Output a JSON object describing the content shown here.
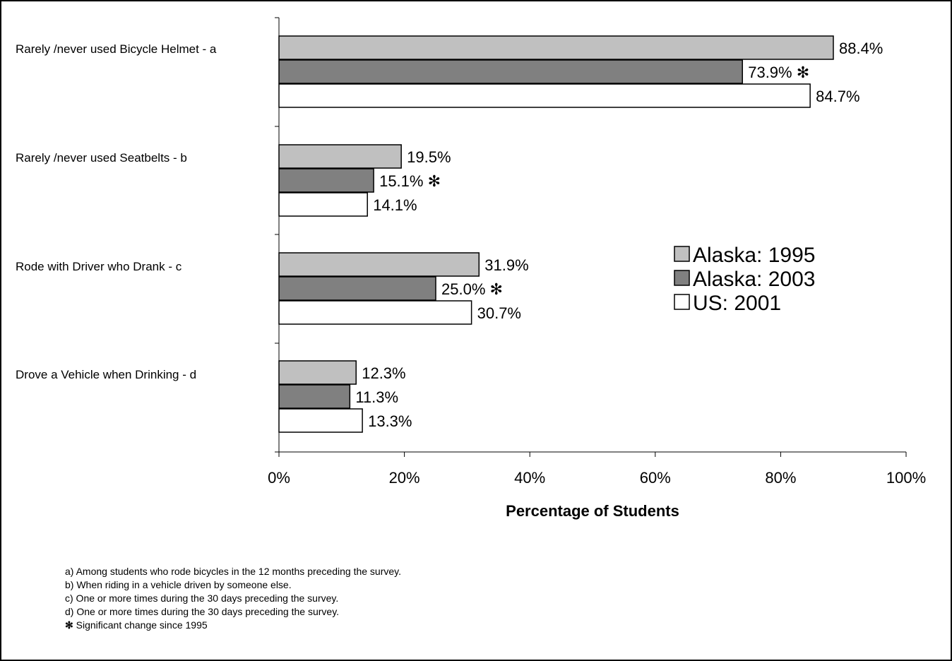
{
  "chart_data": {
    "type": "bar",
    "orientation": "horizontal",
    "categories": [
      "Rarely /never used Bicycle Helmet - a",
      "Rarely /never used Seatbelts - b",
      "Rode with Driver who Drank - c",
      "Drove a Vehicle when Drinking - d"
    ],
    "series": [
      {
        "name": "Alaska: 1995",
        "color": "#c0c0c0",
        "values": [
          88.4,
          19.5,
          31.9,
          12.3
        ],
        "labels": [
          "88.4%",
          "19.5%",
          "31.9%",
          "12.3%"
        ]
      },
      {
        "name": "Alaska: 2003",
        "color": "#808080",
        "values": [
          73.9,
          15.1,
          25.0,
          11.3
        ],
        "labels": [
          "73.9%",
          "15.1%",
          "25.0%",
          "11.3%"
        ],
        "significant": [
          true,
          true,
          true,
          false
        ]
      },
      {
        "name": "US: 2001",
        "color": "#ffffff",
        "values": [
          84.7,
          14.1,
          30.7,
          13.3
        ],
        "labels": [
          "84.7%",
          "14.1%",
          "30.7%",
          "13.3%"
        ]
      }
    ],
    "x_ticks": [
      "0%",
      "20%",
      "40%",
      "60%",
      "80%",
      "100%"
    ],
    "xlim": [
      0,
      100
    ],
    "xlabel": "Percentage of Students",
    "significance_marker": "✻",
    "legend_position": "right",
    "grid": false
  },
  "footnotes": [
    "a) Among students who rode bicycles in the 12 months preceding the survey.",
    "b) When riding in a vehicle driven by someone else.",
    "c) One or more times during the 30 days preceding the survey.",
    "d) One or more times during the 30 days preceding the survey."
  ],
  "significance_note": {
    "marker": "✻",
    "text": "Significant change since 1995"
  }
}
